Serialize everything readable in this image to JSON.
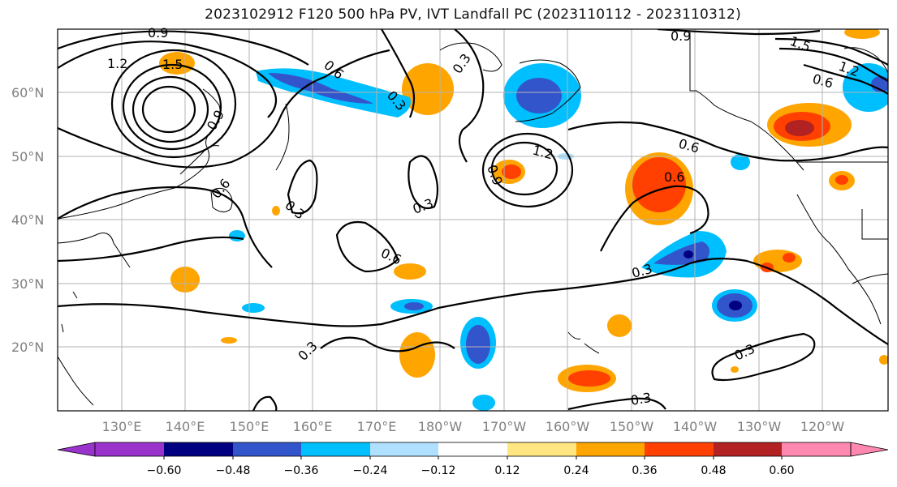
{
  "title": "2023102912 F120 500 hPa PV, IVT Landfall PC (2023110112 - 2023110312)",
  "lat_labels": [
    "60°N",
    "50°N",
    "40°N",
    "30°N",
    "20°N"
  ],
  "lon_labels": [
    "130°E",
    "140°E",
    "150°E",
    "160°E",
    "170°E",
    "180°W",
    "170°W",
    "160°W",
    "150°W",
    "140°W",
    "130°W",
    "120°W"
  ],
  "contour_labels": [
    "0.9",
    "1.2",
    "1.5",
    "0.6",
    "0.3",
    "0.6",
    "0.3",
    "0.9",
    "1.2",
    "0.9",
    "0.6",
    "0.6",
    "0.3",
    "0.6",
    "0.3",
    "0.3",
    "0.9",
    "1.5",
    "1.2",
    "0.6",
    "0.3",
    "0.3",
    "0.3"
  ],
  "colorbar": {
    "ticks": [
      "−0.60",
      "−0.48",
      "−0.36",
      "−0.24",
      "−0.12",
      "0.12",
      "0.24",
      "0.36",
      "0.48",
      "0.60"
    ],
    "colors": [
      "#9933cc",
      "#000080",
      "#3355cc",
      "#00bfff",
      "#b0e0ff",
      "#ffffff",
      "#ffe680",
      "#ffa500",
      "#ff4000",
      "#b22222",
      "#ff88b0"
    ]
  }
}
